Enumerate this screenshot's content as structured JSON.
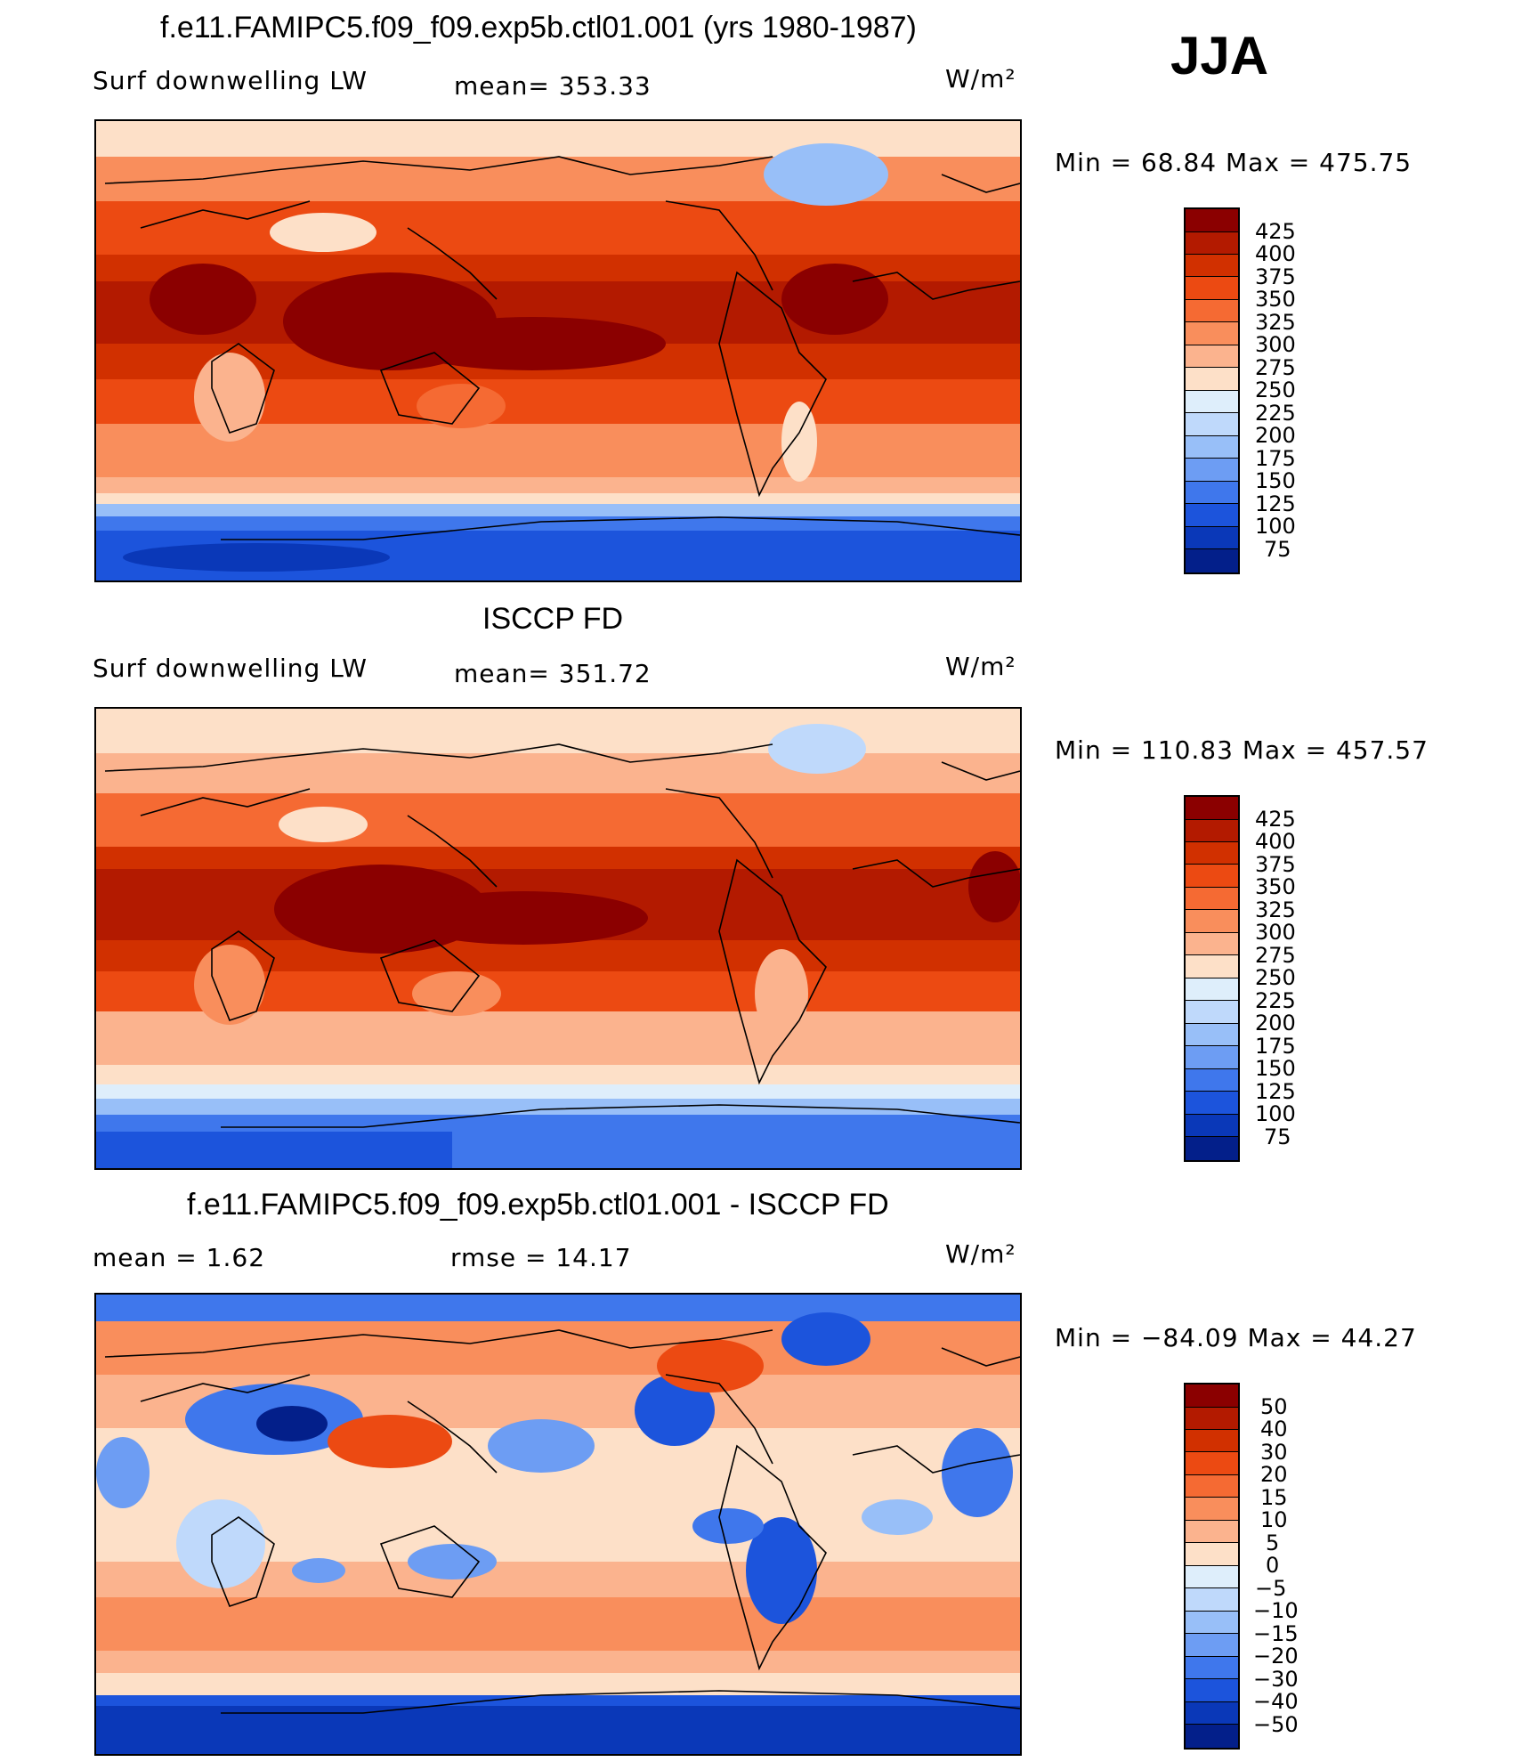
{
  "season": "JJA",
  "units": "W/m²",
  "panels": [
    {
      "title": "f.e11.FAMIPC5.f09_f09.exp5b.ctl01.001 (yrs 1980-1987)",
      "left_label": "Surf  downwelling  LW",
      "stat1": "mean=  353.33",
      "stat2": "",
      "minmax": "Min  =    68.84  Max  =  475.75",
      "colorbar": {
        "labels": [
          "425",
          "400",
          "375",
          "350",
          "325",
          "300",
          "275",
          "250",
          "225",
          "200",
          "175",
          "150",
          "125",
          "100",
          "75"
        ],
        "colors": [
          "#8b0000",
          "#b31a00",
          "#d13000",
          "#ec4a12",
          "#f56a33",
          "#f98e5c",
          "#fbb38e",
          "#fde0c8",
          "#deeefb",
          "#bfd9fb",
          "#98bff8",
          "#6d9df3",
          "#3f77ec",
          "#1c54dc",
          "#0a38b8",
          "#031f8a"
        ]
      }
    },
    {
      "title": "ISCCP FD",
      "left_label": "Surf  downwelling  LW",
      "stat1": "mean=  351.72",
      "stat2": "",
      "minmax": "Min  =  110.83  Max  =  457.57",
      "colorbar": {
        "labels": [
          "425",
          "400",
          "375",
          "350",
          "325",
          "300",
          "275",
          "250",
          "225",
          "200",
          "175",
          "150",
          "125",
          "100",
          "75"
        ],
        "colors": [
          "#8b0000",
          "#b31a00",
          "#d13000",
          "#ec4a12",
          "#f56a33",
          "#f98e5c",
          "#fbb38e",
          "#fde0c8",
          "#deeefb",
          "#bfd9fb",
          "#98bff8",
          "#6d9df3",
          "#3f77ec",
          "#1c54dc",
          "#0a38b8",
          "#031f8a"
        ]
      }
    },
    {
      "title": "f.e11.FAMIPC5.f09_f09.exp5b.ctl01.001 - ISCCP FD",
      "left_label": "mean  =      1.62",
      "stat1": "rmse  =     14.17",
      "stat2": "",
      "minmax": "Min  =  −84.09  Max  =    44.27",
      "colorbar": {
        "labels": [
          "50",
          "40",
          "30",
          "20",
          "15",
          "10",
          "5",
          "0",
          "−5",
          "−10",
          "−15",
          "−20",
          "−30",
          "−40",
          "−50"
        ],
        "colors": [
          "#8b0000",
          "#b31a00",
          "#d13000",
          "#ec4a12",
          "#f56a33",
          "#f98e5c",
          "#fbb38e",
          "#fde0c8",
          "#deeefb",
          "#bfd9fb",
          "#98bff8",
          "#6d9df3",
          "#3f77ec",
          "#1c54dc",
          "#0a38b8",
          "#031f8a"
        ]
      }
    }
  ]
}
